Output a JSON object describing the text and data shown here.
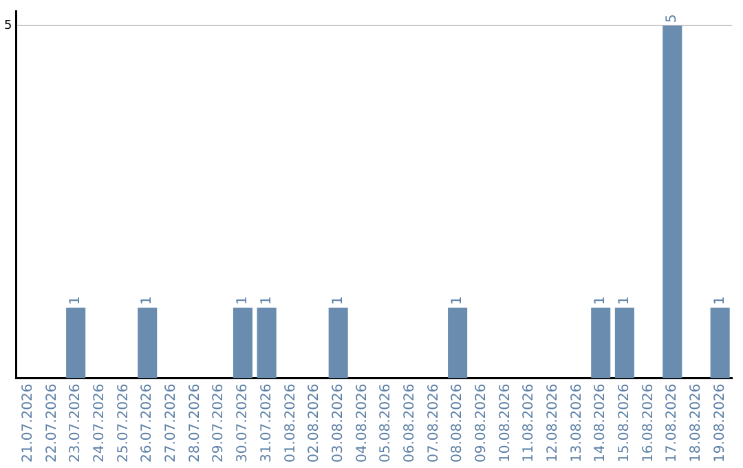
{
  "chart_data": {
    "type": "bar",
    "categories": [
      "21.07.2026",
      "22.07.2026",
      "23.07.2026",
      "24.07.2026",
      "25.07.2026",
      "26.07.2026",
      "27.07.2026",
      "28.07.2026",
      "29.07.2026",
      "30.07.2026",
      "31.07.2026",
      "01.08.2026",
      "02.08.2026",
      "03.08.2026",
      "04.08.2026",
      "05.08.2026",
      "06.08.2026",
      "07.08.2026",
      "08.08.2026",
      "09.08.2026",
      "10.08.2026",
      "11.08.2026",
      "12.08.2026",
      "13.08.2026",
      "14.08.2026",
      "15.08.2026",
      "16.08.2026",
      "17.08.2026",
      "18.08.2026",
      "19.08.2026"
    ],
    "values": [
      0,
      0,
      1,
      0,
      0,
      1,
      0,
      0,
      0,
      1,
      1,
      0,
      0,
      1,
      0,
      0,
      0,
      0,
      1,
      0,
      0,
      0,
      0,
      0,
      1,
      1,
      0,
      5,
      0,
      1
    ],
    "value_labels": [
      null,
      null,
      "1",
      null,
      null,
      "1",
      null,
      null,
      null,
      "1",
      "1",
      null,
      null,
      "1",
      null,
      null,
      null,
      null,
      "1",
      null,
      null,
      null,
      null,
      null,
      "1",
      "1",
      null,
      "5",
      null,
      "1"
    ],
    "color": "#6a8caf",
    "ylim": [
      0,
      5.2
    ],
    "yticks": [
      5
    ],
    "grid": "y",
    "legend": false
  }
}
